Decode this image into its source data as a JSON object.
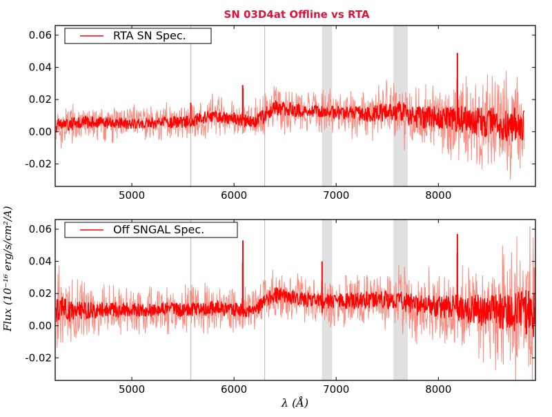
{
  "figure": {
    "title": "SN 03D4at Offline vs RTA",
    "title_color": "#dc143c",
    "xlabel": "λ (Å)",
    "ylabel": "Flux (10⁻¹⁶ erg/s/cm²/A)"
  },
  "chart_data": [
    {
      "type": "line",
      "panel": "top",
      "legend": {
        "label": "RTA SN Spec.",
        "placement": "top-left"
      },
      "xlim": [
        4250,
        8950
      ],
      "ylim": [
        -0.034,
        0.066
      ],
      "xticks": [
        5000,
        6000,
        7000,
        8000
      ],
      "yticks": [
        -0.02,
        0.0,
        0.02,
        0.04,
        0.06
      ],
      "ytick_labels": [
        "-0.02",
        "0.00",
        "0.02",
        "0.04",
        "0.06"
      ],
      "vlines": [
        5577,
        6300
      ],
      "bands": [
        [
          6860,
          6960
        ],
        [
          7560,
          7700
        ]
      ],
      "series": [
        {
          "name": "RTA SN Spec.",
          "color": "#ff0000",
          "noise_color": "#fa8072",
          "x_range": [
            4260,
            8840
          ],
          "x": [
            4260,
            4500,
            5000,
            5500,
            5800,
            6000,
            6200,
            6300,
            6400,
            6700,
            7000,
            7300,
            7600,
            7800,
            8000,
            8200,
            8400,
            8600,
            8800
          ],
          "values": [
            0.003,
            0.006,
            0.005,
            0.006,
            0.01,
            0.008,
            0.006,
            0.01,
            0.015,
            0.013,
            0.012,
            0.011,
            0.013,
            0.009,
            0.009,
            0.008,
            0.006,
            0.005,
            0.004
          ],
          "noise_amplitude": [
            0.013,
            0.011,
            0.01,
            0.011,
            0.011,
            0.011,
            0.011,
            0.014,
            0.014,
            0.012,
            0.012,
            0.014,
            0.018,
            0.02,
            0.02,
            0.024,
            0.026,
            0.028,
            0.032
          ],
          "spikes": [
            [
              5577,
              0.018
            ],
            [
              6085,
              0.029
            ],
            [
              6087,
              0.027
            ],
            [
              8185,
              0.033
            ],
            [
              8186,
              0.049
            ]
          ]
        }
      ]
    },
    {
      "type": "line",
      "panel": "bottom",
      "legend": {
        "label": "Off SNGAL Spec.",
        "placement": "top-left"
      },
      "xlim": [
        4250,
        8950
      ],
      "ylim": [
        -0.034,
        0.066
      ],
      "xticks": [
        5000,
        6000,
        7000,
        8000
      ],
      "xtick_labels": [
        "5000",
        "6000",
        "7000",
        "8000"
      ],
      "yticks": [
        -0.02,
        0.0,
        0.02,
        0.04,
        0.06
      ],
      "ytick_labels": [
        "-0.02",
        "0.00",
        "0.02",
        "0.04",
        "0.06"
      ],
      "vlines": [
        5577,
        6300
      ],
      "bands": [
        [
          6860,
          6960
        ],
        [
          7560,
          7700
        ]
      ],
      "series": [
        {
          "name": "Off SNGAL Spec.",
          "color": "#ff0000",
          "noise_color": "#fa8072",
          "x_range": [
            4260,
            8950
          ],
          "x": [
            4260,
            4500,
            5000,
            5500,
            5800,
            6000,
            6200,
            6300,
            6400,
            6700,
            7000,
            7300,
            7600,
            7800,
            8000,
            8200,
            8400,
            8600,
            8800,
            8950
          ],
          "values": [
            0.01,
            0.009,
            0.01,
            0.01,
            0.011,
            0.01,
            0.009,
            0.016,
            0.019,
            0.016,
            0.015,
            0.016,
            0.016,
            0.012,
            0.012,
            0.011,
            0.01,
            0.009,
            0.008,
            0.008
          ],
          "noise_amplitude": [
            0.026,
            0.016,
            0.013,
            0.013,
            0.013,
            0.013,
            0.012,
            0.014,
            0.015,
            0.014,
            0.014,
            0.016,
            0.018,
            0.02,
            0.02,
            0.024,
            0.028,
            0.032,
            0.04,
            0.044
          ],
          "spikes": [
            [
              6085,
              0.039
            ],
            [
              6087,
              0.053
            ],
            [
              6862,
              0.04
            ],
            [
              8185,
              0.045
            ],
            [
              8186,
              0.057
            ]
          ]
        }
      ]
    }
  ]
}
